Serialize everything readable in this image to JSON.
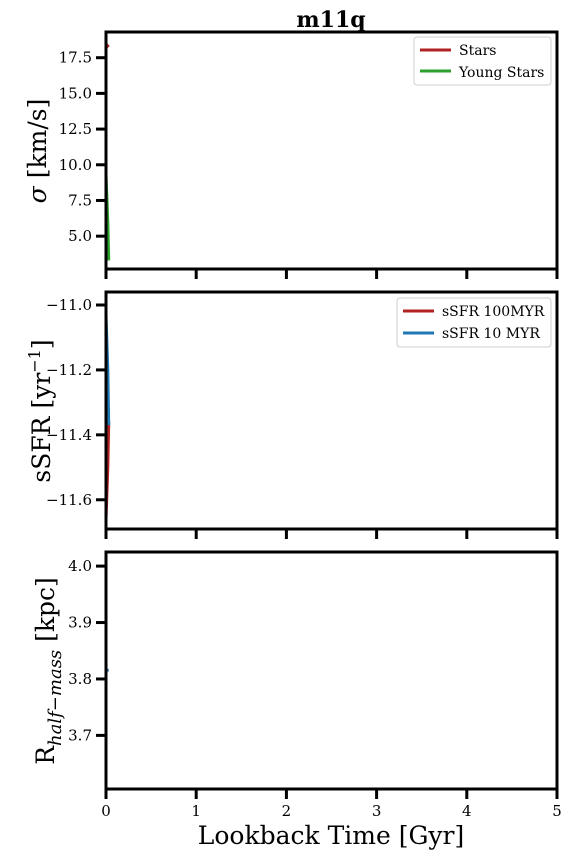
{
  "chart_data": [
    {
      "type": "line",
      "title": "m11q",
      "ylabel": "σ [km/s]",
      "xlim": [
        0,
        5
      ],
      "ylim": [
        2.7,
        19.3
      ],
      "yticks": [
        5.0,
        7.5,
        10.0,
        12.5,
        15.0,
        17.5
      ],
      "ytick_labels": [
        "5.0",
        "7.5",
        "10.0",
        "12.5",
        "15.0",
        "17.5"
      ],
      "legend_position": "top-right",
      "series": [
        {
          "name": "Stars",
          "color": "#b22222",
          "x": [
            0.0,
            0.03
          ],
          "y": [
            18.45,
            18.25
          ]
        },
        {
          "name": "Young Stars",
          "color": "#2ca02c",
          "x": [
            0.0,
            0.02,
            0.03
          ],
          "y": [
            9.3,
            6.0,
            3.3
          ]
        }
      ]
    },
    {
      "type": "line",
      "ylabel": "sSFR [yr⁻¹]",
      "xlim": [
        0,
        5
      ],
      "ylim": [
        -11.69,
        -10.96
      ],
      "yticks": [
        -11.6,
        -11.4,
        -11.2,
        -11.0
      ],
      "ytick_labels": [
        "−11.6",
        "−11.4",
        "−11.2",
        "−11.0"
      ],
      "legend_position": "top-right",
      "series": [
        {
          "name": "sSFR 100MYR",
          "color": "#b22222",
          "x": [
            0.0,
            0.02,
            0.03
          ],
          "y": [
            -11.66,
            -11.5,
            -11.36
          ]
        },
        {
          "name": "sSFR 10 MYR",
          "color": "#1f77b4",
          "x": [
            0.0,
            0.02,
            0.03
          ],
          "y": [
            -11.03,
            -11.2,
            -11.37
          ]
        }
      ]
    },
    {
      "type": "line",
      "ylabel": "R_half−mass [kpc]",
      "xlabel": "Lookback Time [Gyr]",
      "xlim": [
        0,
        5
      ],
      "ylim": [
        3.605,
        4.025
      ],
      "xticks": [
        0,
        1,
        2,
        3,
        4,
        5
      ],
      "xtick_labels": [
        "0",
        "1",
        "2",
        "3",
        "4",
        "5"
      ],
      "yticks": [
        3.7,
        3.8,
        3.9,
        4.0
      ],
      "ytick_labels": [
        "3.7",
        "3.8",
        "3.9",
        "4.0"
      ],
      "series": [
        {
          "color": "#1f77b4",
          "x": [
            0.0,
            0.03
          ],
          "y": [
            3.815,
            3.816
          ]
        }
      ]
    }
  ]
}
